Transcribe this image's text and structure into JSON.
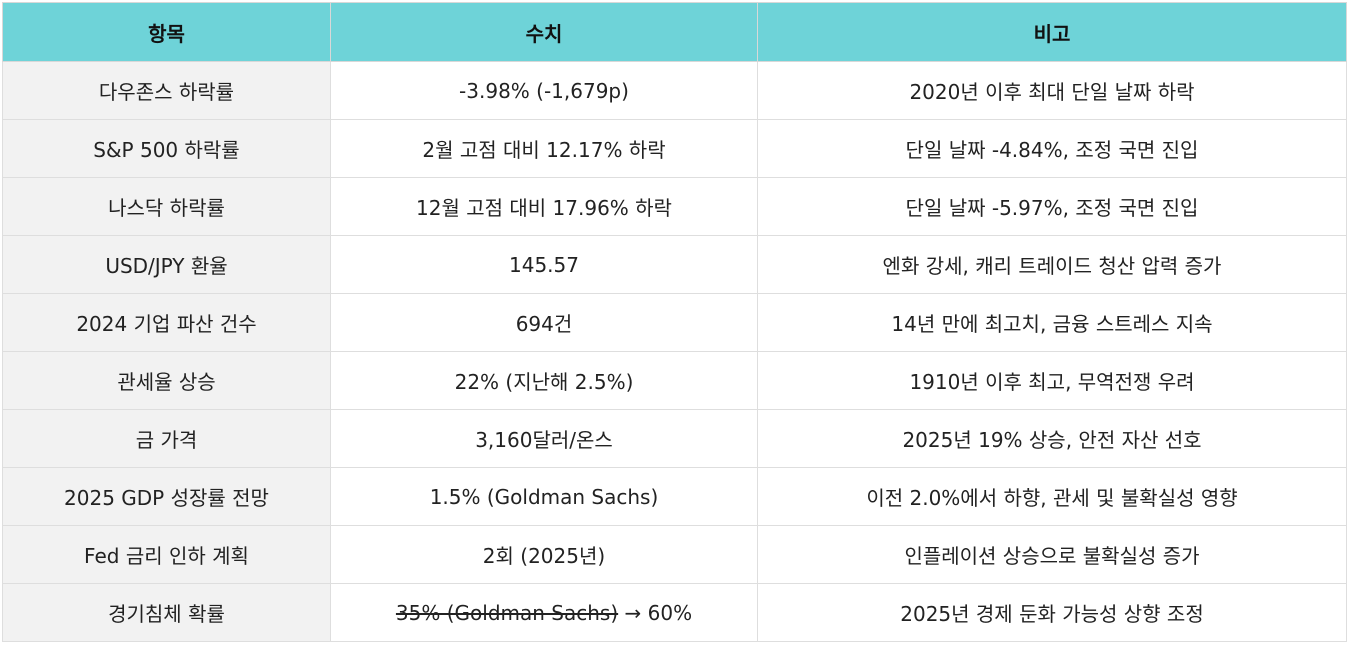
{
  "headers": [
    "항목",
    "수치",
    "비고"
  ],
  "rows": [
    {
      "item": "다우존스 하락률",
      "value": "-3.98% (-1,679p)",
      "note": "2020년 이후 최대 단일 날짜 하락"
    },
    {
      "item": "S&P 500 하락률",
      "value": "2월 고점 대비 12.17% 하락",
      "note": "단일 날짜 -4.84%, 조정 국면 진입"
    },
    {
      "item": "나스닥 하락률",
      "value": "12월 고점 대비 17.96% 하락",
      "note": "단일 날짜 -5.97%, 조정 국면 진입"
    },
    {
      "item": "USD/JPY 환율",
      "value": "145.57",
      "note": "엔화 강세, 캐리 트레이드 청산 압력 증가"
    },
    {
      "item": "2024 기업 파산 건수",
      "value": "694건",
      "note": "14년 만에 최고치, 금융 스트레스 지속"
    },
    {
      "item": "관세율 상승",
      "value": "22% (지난해 2.5%)",
      "note": "1910년 이후 최고, 무역전쟁 우려"
    },
    {
      "item": "금 가격",
      "value": "3,160달러/온스",
      "note": "2025년 19% 상승, 안전 자산 선호"
    },
    {
      "item": "2025 GDP 성장률 전망",
      "value": "1.5% (Goldman Sachs)",
      "note": "이전 2.0%에서 하향, 관세 및 불확실성 영향"
    },
    {
      "item": "Fed 금리 인하 계획",
      "value": "2회 (2025년)",
      "note": "인플레이션 상승으로 불확실성 증가"
    },
    {
      "item": "경기침체 확률",
      "value_struck": "35% (Goldman Sachs)",
      "value_rest": " → 60%",
      "note": "2025년 경제 둔화 가능성 상향 조정"
    }
  ]
}
